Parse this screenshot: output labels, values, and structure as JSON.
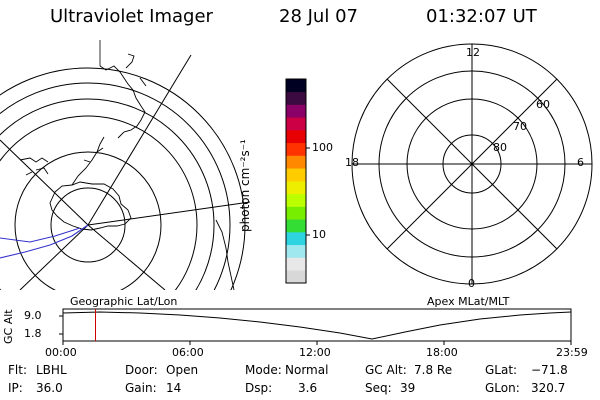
{
  "header": {
    "title": "Ultraviolet Imager",
    "date": "28 Jul 07",
    "time": "01:32:07 UT"
  },
  "colorbar": {
    "unit_label": "photon cm⁻²s⁻¹",
    "ticks": [
      {
        "label": "100",
        "value": 100
      },
      {
        "label": "10",
        "value": 10
      }
    ],
    "colors": [
      "#d8d8d8",
      "#e8e8e8",
      "#9fe8ef",
      "#2ed4e0",
      "#33dd33",
      "#77ee00",
      "#bbff00",
      "#eeee00",
      "#ffcc00",
      "#ff8800",
      "#ff3300",
      "#e80000",
      "#cc0044",
      "#8a0066",
      "#3a0a40",
      "#000022"
    ]
  },
  "left_panel": {
    "caption": "Geographic Lat/Lon"
  },
  "right_panel": {
    "caption": "Apex MLat/MLT",
    "mlt_labels": {
      "top": "12",
      "left": "18",
      "right": "6",
      "bottom": "0"
    },
    "mlat_labels": [
      "60",
      "70",
      "80"
    ]
  },
  "timeline": {
    "axis_title": "GC Alt",
    "y_ticks": [
      "9.0",
      "1.8"
    ],
    "x_ticks": [
      "00:00",
      "06:00",
      "12:00",
      "18:00",
      "23:59"
    ],
    "marker_time": "01:32",
    "marker_color": "#cc0000"
  },
  "info": {
    "filter": {
      "label": "Flt:",
      "value": "LBHL"
    },
    "ip": {
      "label": "IP:",
      "value": "36.0"
    },
    "door": {
      "label": "Door:",
      "value": "Open"
    },
    "gain": {
      "label": "Gain:",
      "value": "14"
    },
    "mode": {
      "label": "Mode:",
      "value": "Normal"
    },
    "dsp": {
      "label": "Dsp:",
      "value": "3.6"
    },
    "gcalt": {
      "label": "GC Alt:",
      "value": "7.8 Re"
    },
    "seq": {
      "label": "Seq:",
      "value": "39"
    },
    "glat": {
      "label": "GLat:",
      "value": "−71.8"
    },
    "glon": {
      "label": "GLon:",
      "value": "320.7"
    }
  }
}
